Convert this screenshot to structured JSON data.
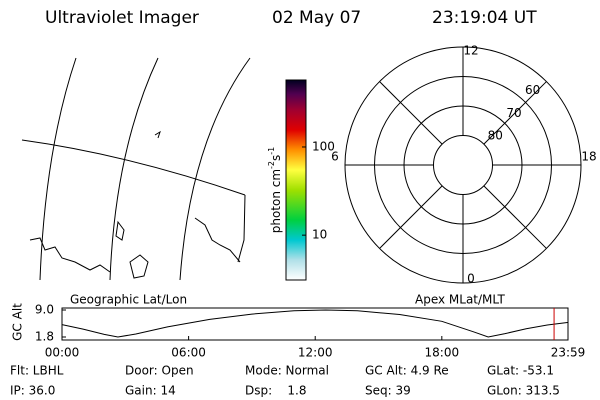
{
  "header": {
    "instrument": "Ultraviolet Imager",
    "date": "02 May 07",
    "time": "23:19:04 UT"
  },
  "colorbar": {
    "label": "photon cm",
    "exp1": "-2",
    "unit2": "s",
    "exp2": "-1",
    "scale": "log",
    "lim": [
      3.1,
      575
    ],
    "ticks": [
      10,
      100
    ]
  },
  "polar": {
    "mlt_labels": [
      12,
      18,
      6,
      0
    ],
    "lat_rings": [
      80,
      70,
      60
    ],
    "lat_min": 50
  },
  "panel_labels": {
    "left": "Geographic Lat/Lon",
    "right": "Apex  MLat/MLT"
  },
  "chart_data": {
    "type": "line",
    "ylabel": "GC Alt",
    "x": [
      0,
      1,
      2,
      2.65,
      3.5,
      5,
      7,
      9,
      11,
      12.5,
      14,
      16,
      18,
      19.5,
      20.2,
      21,
      22,
      23,
      24
    ],
    "series": [
      {
        "name": "GC Alt",
        "color": "#000000",
        "values": [
          5.1,
          3.9,
          2.5,
          1.8,
          2.6,
          4.5,
          6.5,
          7.9,
          8.8,
          9.0,
          8.8,
          7.8,
          6.0,
          3.2,
          1.8,
          2.7,
          4.0,
          5.0,
          5.7
        ]
      }
    ],
    "xlim": [
      0,
      23.98
    ],
    "ylim": [
      1.8,
      9.0
    ],
    "xticks": [
      {
        "value": 0,
        "label": "00:00"
      },
      {
        "value": 6,
        "label": "06:00"
      },
      {
        "value": 12,
        "label": "12:00"
      },
      {
        "value": 18,
        "label": "18:00"
      },
      {
        "value": 23.98,
        "label": "23:59"
      }
    ],
    "yticks": [
      {
        "value": 9.0,
        "label": "9.0"
      },
      {
        "value": 1.8,
        "label": "1.8"
      }
    ],
    "marker": {
      "value": 23.32,
      "color": "#cc0000"
    }
  },
  "info": [
    [
      "Flt: LBHL",
      "Door: Open",
      "Mode: Normal",
      "GC Alt: 4.9 Re",
      "GLat: -53.1"
    ],
    [
      "IP: 36.0",
      "Gain: 14",
      "Dsp:    1.8",
      "Seq: 39",
      "GLon: 313.5"
    ]
  ]
}
